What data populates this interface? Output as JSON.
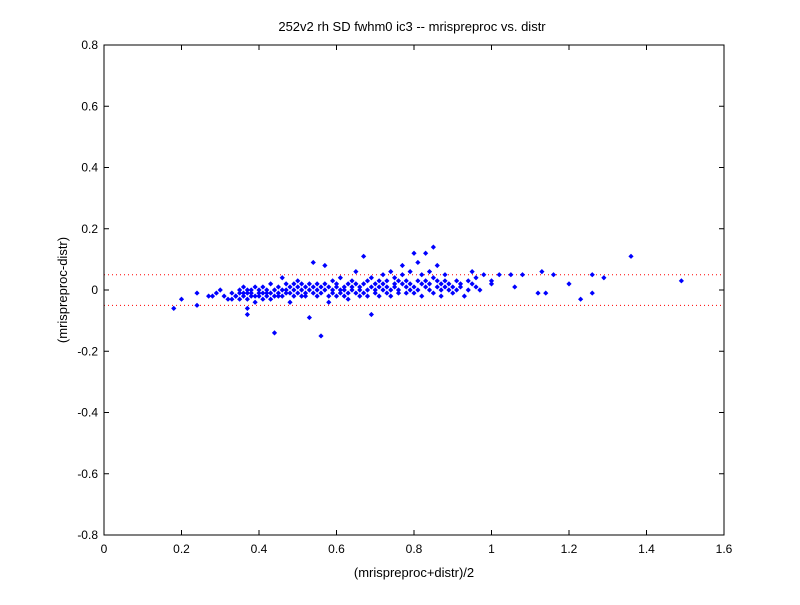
{
  "chart_data": {
    "type": "scatter",
    "title": "252v2 rh SD fwhm0 ic3 -- mrispreproc vs. distr",
    "xlabel": "(mrispreproc+distr)/2",
    "ylabel": "(mrispreproc-distr)",
    "xlim": [
      0,
      1.6
    ],
    "ylim": [
      -0.8,
      0.8
    ],
    "xticks": [
      0,
      0.2,
      0.4,
      0.6,
      0.8,
      1,
      1.2,
      1.4,
      1.6
    ],
    "xtick_labels": [
      "0",
      "0.2",
      "0.4",
      "0.6",
      "0.8",
      "1",
      "1.2",
      "1.4",
      "1.6"
    ],
    "yticks": [
      -0.8,
      -0.6,
      -0.4,
      -0.2,
      0,
      0.2,
      0.4,
      0.6,
      0.8
    ],
    "ytick_labels": [
      "-0.8",
      "-0.6",
      "-0.4",
      "-0.2",
      "0",
      "0.2",
      "0.4",
      "0.6",
      "0.8"
    ],
    "grid": false,
    "reference_lines": [
      0.05,
      -0.05
    ],
    "colors": {
      "points": "#0000ff",
      "reference": "#ff0000",
      "axes": "#000000"
    },
    "series": [
      {
        "marker": "diamond",
        "points": [
          [
            0.18,
            -0.06
          ],
          [
            0.2,
            -0.03
          ],
          [
            0.24,
            -0.05
          ],
          [
            0.24,
            -0.01
          ],
          [
            0.27,
            -0.02
          ],
          [
            0.28,
            -0.02
          ],
          [
            0.29,
            -0.01
          ],
          [
            0.3,
            0.0
          ],
          [
            0.31,
            -0.02
          ],
          [
            0.32,
            -0.03
          ],
          [
            0.33,
            -0.03
          ],
          [
            0.33,
            -0.01
          ],
          [
            0.34,
            -0.02
          ],
          [
            0.34,
            -0.02
          ],
          [
            0.35,
            0.0
          ],
          [
            0.35,
            -0.01
          ],
          [
            0.35,
            -0.03
          ],
          [
            0.36,
            -0.01
          ],
          [
            0.36,
            -0.02
          ],
          [
            0.36,
            0.01
          ],
          [
            0.37,
            -0.01
          ],
          [
            0.37,
            -0.03
          ],
          [
            0.37,
            0.0
          ],
          [
            0.37,
            -0.08
          ],
          [
            0.37,
            -0.06
          ],
          [
            0.38,
            -0.02
          ],
          [
            0.38,
            0.0
          ],
          [
            0.38,
            -0.01
          ],
          [
            0.39,
            -0.02
          ],
          [
            0.39,
            -0.04
          ],
          [
            0.39,
            0.01
          ],
          [
            0.4,
            -0.01
          ],
          [
            0.4,
            -0.02
          ],
          [
            0.4,
            0.0
          ],
          [
            0.41,
            -0.01
          ],
          [
            0.41,
            0.01
          ],
          [
            0.41,
            -0.03
          ],
          [
            0.42,
            -0.02
          ],
          [
            0.42,
            0.0
          ],
          [
            0.42,
            -0.01
          ],
          [
            0.43,
            -0.01
          ],
          [
            0.43,
            0.02
          ],
          [
            0.43,
            -0.03
          ],
          [
            0.44,
            0.0
          ],
          [
            0.44,
            -0.02
          ],
          [
            0.44,
            -0.14
          ],
          [
            0.45,
            0.01
          ],
          [
            0.45,
            -0.01
          ],
          [
            0.45,
            -0.02
          ],
          [
            0.46,
            0.04
          ],
          [
            0.46,
            0.0
          ],
          [
            0.46,
            -0.02
          ],
          [
            0.47,
            0.02
          ],
          [
            0.47,
            -0.01
          ],
          [
            0.47,
            0.0
          ],
          [
            0.48,
            -0.01
          ],
          [
            0.48,
            0.01
          ],
          [
            0.48,
            -0.04
          ],
          [
            0.49,
            0.02
          ],
          [
            0.49,
            0.0
          ],
          [
            0.49,
            -0.02
          ],
          [
            0.5,
            0.01
          ],
          [
            0.5,
            -0.01
          ],
          [
            0.5,
            0.03
          ],
          [
            0.51,
            0.0
          ],
          [
            0.51,
            -0.02
          ],
          [
            0.51,
            0.02
          ],
          [
            0.52,
            0.01
          ],
          [
            0.52,
            -0.01
          ],
          [
            0.52,
            -0.02
          ],
          [
            0.53,
            0.0
          ],
          [
            0.53,
            0.02
          ],
          [
            0.53,
            -0.09
          ],
          [
            0.54,
            0.09
          ],
          [
            0.54,
            0.01
          ],
          [
            0.54,
            -0.01
          ],
          [
            0.55,
            0.02
          ],
          [
            0.55,
            -0.02
          ],
          [
            0.55,
            0.0
          ],
          [
            0.56,
            0.01
          ],
          [
            0.56,
            -0.15
          ],
          [
            0.56,
            -0.01
          ],
          [
            0.57,
            0.02
          ],
          [
            0.57,
            0.0
          ],
          [
            0.57,
            0.08
          ],
          [
            0.58,
            -0.02
          ],
          [
            0.58,
            0.01
          ],
          [
            0.58,
            -0.04
          ],
          [
            0.59,
            0.0
          ],
          [
            0.59,
            0.03
          ],
          [
            0.59,
            -0.01
          ],
          [
            0.6,
            0.01
          ],
          [
            0.6,
            -0.02
          ],
          [
            0.6,
            0.02
          ],
          [
            0.61,
            0.0
          ],
          [
            0.61,
            -0.01
          ],
          [
            0.61,
            0.04
          ],
          [
            0.62,
            0.01
          ],
          [
            0.62,
            -0.02
          ],
          [
            0.62,
            0.0
          ],
          [
            0.63,
            0.02
          ],
          [
            0.63,
            -0.01
          ],
          [
            0.63,
            -0.03
          ],
          [
            0.64,
            0.01
          ],
          [
            0.64,
            0.03
          ],
          [
            0.64,
            0.0
          ],
          [
            0.65,
            -0.01
          ],
          [
            0.65,
            0.02
          ],
          [
            0.65,
            0.06
          ],
          [
            0.66,
            0.0
          ],
          [
            0.66,
            -0.02
          ],
          [
            0.66,
            0.01
          ],
          [
            0.67,
            0.02
          ],
          [
            0.67,
            -0.01
          ],
          [
            0.67,
            0.11
          ],
          [
            0.68,
            0.0
          ],
          [
            0.68,
            0.03
          ],
          [
            0.68,
            -0.02
          ],
          [
            0.69,
            0.01
          ],
          [
            0.69,
            0.04
          ],
          [
            0.69,
            -0.08
          ],
          [
            0.7,
            0.0
          ],
          [
            0.7,
            0.02
          ],
          [
            0.7,
            -0.01
          ],
          [
            0.71,
            0.01
          ],
          [
            0.71,
            0.03
          ],
          [
            0.71,
            -0.02
          ],
          [
            0.72,
            0.0
          ],
          [
            0.72,
            0.05
          ],
          [
            0.72,
            0.02
          ],
          [
            0.73,
            -0.01
          ],
          [
            0.73,
            0.01
          ],
          [
            0.73,
            0.03
          ],
          [
            0.74,
            0.0
          ],
          [
            0.74,
            0.06
          ],
          [
            0.74,
            -0.02
          ],
          [
            0.75,
            0.02
          ],
          [
            0.75,
            0.01
          ],
          [
            0.75,
            0.04
          ],
          [
            0.76,
            0.0
          ],
          [
            0.76,
            0.03
          ],
          [
            0.76,
            -0.01
          ],
          [
            0.77,
            0.02
          ],
          [
            0.77,
            0.05
          ],
          [
            0.77,
            0.08
          ],
          [
            0.78,
            0.01
          ],
          [
            0.78,
            -0.01
          ],
          [
            0.78,
            0.03
          ],
          [
            0.79,
            0.0
          ],
          [
            0.79,
            0.06
          ],
          [
            0.79,
            0.02
          ],
          [
            0.8,
            0.01
          ],
          [
            0.8,
            0.12
          ],
          [
            0.8,
            -0.01
          ],
          [
            0.81,
            0.03
          ],
          [
            0.81,
            0.0
          ],
          [
            0.81,
            0.09
          ],
          [
            0.82,
            0.02
          ],
          [
            0.82,
            0.05
          ],
          [
            0.82,
            -0.02
          ],
          [
            0.83,
            0.01
          ],
          [
            0.83,
            0.03
          ],
          [
            0.83,
            0.12
          ],
          [
            0.84,
            0.0
          ],
          [
            0.84,
            0.06
          ],
          [
            0.84,
            0.02
          ],
          [
            0.85,
            0.14
          ],
          [
            0.85,
            -0.01
          ],
          [
            0.85,
            0.04
          ],
          [
            0.86,
            0.01
          ],
          [
            0.86,
            0.03
          ],
          [
            0.86,
            0.08
          ],
          [
            0.87,
            0.0
          ],
          [
            0.87,
            0.02
          ],
          [
            0.87,
            -0.02
          ],
          [
            0.88,
            0.05
          ],
          [
            0.88,
            0.01
          ],
          [
            0.88,
            0.03
          ],
          [
            0.89,
            0.0
          ],
          [
            0.89,
            0.02
          ],
          [
            0.9,
            0.01
          ],
          [
            0.9,
            -0.01
          ],
          [
            0.91,
            0.03
          ],
          [
            0.91,
            0.0
          ],
          [
            0.92,
            0.02
          ],
          [
            0.92,
            0.01
          ],
          [
            0.93,
            -0.02
          ],
          [
            0.94,
            0.03
          ],
          [
            0.94,
            0.0
          ],
          [
            0.95,
            0.02
          ],
          [
            0.95,
            0.06
          ],
          [
            0.96,
            0.01
          ],
          [
            0.96,
            0.04
          ],
          [
            0.97,
            0.0
          ],
          [
            0.98,
            0.05
          ],
          [
            1.0,
            0.03
          ],
          [
            1.0,
            0.02
          ],
          [
            1.02,
            0.05
          ],
          [
            1.05,
            0.05
          ],
          [
            1.06,
            0.01
          ],
          [
            1.08,
            0.05
          ],
          [
            1.12,
            -0.01
          ],
          [
            1.13,
            0.06
          ],
          [
            1.14,
            -0.01
          ],
          [
            1.16,
            0.05
          ],
          [
            1.2,
            0.02
          ],
          [
            1.23,
            -0.03
          ],
          [
            1.26,
            0.05
          ],
          [
            1.26,
            -0.01
          ],
          [
            1.29,
            0.04
          ],
          [
            1.36,
            0.11
          ],
          [
            1.49,
            0.03
          ]
        ]
      }
    ]
  }
}
